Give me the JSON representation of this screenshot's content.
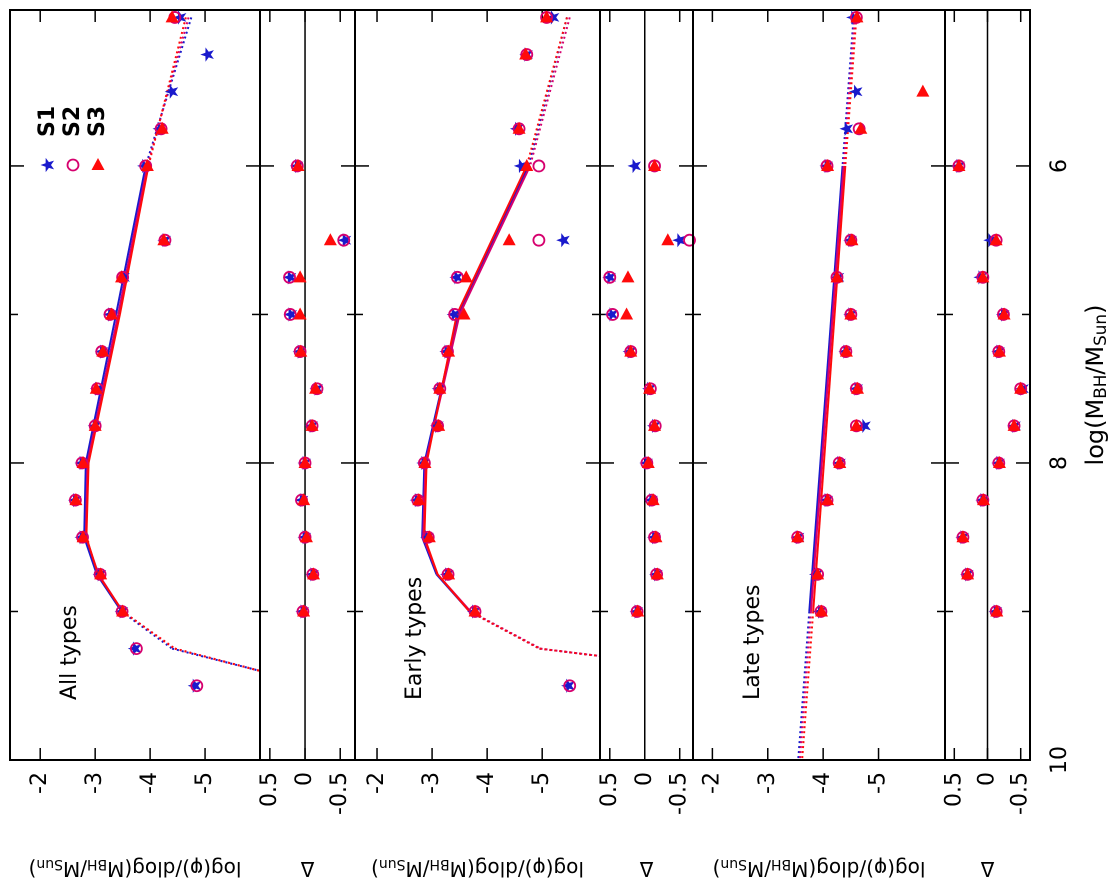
{
  "chart_data": [
    {
      "type": "scatter",
      "panel_label": "All types",
      "ylabel": [
        "log(φ)/dlog(M",
        "BH",
        "/M",
        "Sun",
        ")"
      ],
      "legend": "upper right",
      "xlim": [
        10,
        4.95
      ],
      "xticks": [
        10,
        8,
        6
      ],
      "xminorticks": [
        9,
        7
      ],
      "ylim": [
        -6.0,
        -1.45
      ],
      "yticks": [
        -2,
        -3,
        -4,
        -5
      ],
      "x": [
        5.0,
        5.25,
        5.5,
        5.75,
        6.0,
        6.5,
        6.75,
        7.0,
        7.25,
        7.5,
        7.75,
        8.0,
        8.25,
        8.5,
        8.75,
        9.0,
        9.25,
        9.5
      ],
      "model_x": [
        5.0,
        6.0,
        7.0,
        8.0,
        8.5,
        8.75,
        9.0,
        9.25,
        9.4
      ],
      "solid_range": [
        9.0,
        6.0
      ],
      "series": [
        {
          "name": "S1",
          "color": "#1a1acc",
          "marker": "star",
          "values": [
            -4.55,
            -5.05,
            -4.4,
            -4.18,
            -3.9,
            -4.27,
            -3.52,
            -3.28,
            -3.13,
            -3.04,
            -3.0,
            -2.76,
            -2.64,
            -2.76,
            -3.09,
            -3.49,
            -3.73,
            -4.82
          ],
          "model": [
            -4.75,
            -3.92,
            -3.38,
            -2.83,
            -2.8,
            -3.03,
            -3.48,
            -4.4,
            -6.0
          ]
        },
        {
          "name": "S2",
          "color": "#d6006e",
          "marker": "circle-open",
          "values": [
            -4.45,
            null,
            null,
            -4.2,
            -3.92,
            -4.27,
            -3.5,
            -3.27,
            -3.12,
            -3.04,
            -3.0,
            -2.76,
            -2.64,
            -2.77,
            -3.09,
            -3.49,
            -3.75,
            -4.85
          ],
          "model": [
            -4.7,
            -3.95,
            -3.42,
            -2.86,
            -2.83,
            -3.06,
            -3.5,
            -4.45,
            -6.0
          ]
        },
        {
          "name": "S3",
          "color": "#ff0a0a",
          "marker": "triangle",
          "values": [
            -4.4,
            null,
            null,
            -4.22,
            -3.95,
            -4.25,
            -3.48,
            -3.3,
            -3.14,
            -3.02,
            -3.0,
            -2.78,
            -2.65,
            -2.78,
            -3.1,
            -3.5,
            null,
            null
          ],
          "model": [
            -4.65,
            -3.97,
            -3.45,
            -2.88,
            -2.84,
            -3.05,
            -3.5,
            -4.45,
            -6.0
          ]
        }
      ]
    },
    {
      "type": "scatter",
      "ylabel": [
        "Δ"
      ],
      "zero_line": true,
      "xlim": [
        10,
        4.95
      ],
      "xticks": [
        10,
        8,
        6
      ],
      "xminorticks": [
        9,
        7
      ],
      "ylim": [
        -0.71,
        0.64
      ],
      "yticks": [
        0.5,
        0,
        -0.5
      ],
      "x": [
        6.0,
        6.5,
        6.75,
        7.0,
        7.25,
        7.5,
        7.75,
        8.0,
        8.25,
        8.5,
        8.75,
        9.0
      ],
      "series": [
        {
          "color": "#1a1acc",
          "marker": "star",
          "values": [
            0.11,
            -0.57,
            0.21,
            0.2,
            0.07,
            -0.17,
            -0.1,
            0.0,
            0.04,
            0.0,
            -0.11,
            0.03
          ]
        },
        {
          "color": "#d6006e",
          "marker": "circle-open",
          "values": [
            0.11,
            -0.55,
            0.22,
            0.21,
            0.07,
            -0.17,
            -0.1,
            0.0,
            0.05,
            0.0,
            -0.11,
            0.03
          ]
        },
        {
          "color": "#ff0a0a",
          "marker": "triangle",
          "values": [
            0.1,
            -0.36,
            0.07,
            0.07,
            0.06,
            -0.15,
            -0.1,
            0.0,
            0.02,
            -0.02,
            -0.12,
            0.02
          ]
        }
      ]
    },
    {
      "type": "scatter",
      "panel_label": "Early types",
      "ylabel": [
        "log(φ)/dlog(M",
        "BH",
        "/M",
        "Sun",
        ")"
      ],
      "xlim": [
        10,
        4.95
      ],
      "xticks": [
        10,
        8,
        6
      ],
      "xminorticks": [
        9,
        7
      ],
      "ylim": [
        -6.05,
        -1.6
      ],
      "yticks": [
        -2,
        -3,
        -4,
        -5
      ],
      "x": [
        5.0,
        5.25,
        5.5,
        5.75,
        6.0,
        6.5,
        6.75,
        7.0,
        7.25,
        7.5,
        7.75,
        8.0,
        8.25,
        8.5,
        8.75,
        9.0,
        9.25,
        9.5
      ],
      "model_x": [
        5.0,
        6.0,
        7.0,
        8.0,
        8.5,
        8.75,
        9.0,
        9.25,
        9.3
      ],
      "solid_range": [
        9.0,
        6.0
      ],
      "series": [
        {
          "color": "#1a1acc",
          "marker": "star",
          "values": [
            -5.2,
            -4.72,
            null,
            -4.55,
            -4.62,
            -5.39,
            -3.45,
            -3.4,
            -3.27,
            -3.13,
            -3.1,
            -2.85,
            -2.73,
            -2.92,
            -3.28,
            -3.77,
            null,
            -5.48
          ],
          "model": [
            -5.45,
            -4.75,
            -3.48,
            -2.86,
            -2.82,
            -3.08,
            -3.68,
            -4.95,
            -6.05
          ]
        },
        {
          "color": "#d6006e",
          "marker": "circle-open",
          "values": [
            -5.08,
            -4.72,
            null,
            -4.58,
            -4.94,
            -4.94,
            -3.46,
            -3.41,
            -3.28,
            -3.14,
            -3.1,
            -2.86,
            -2.74,
            -2.93,
            -3.29,
            -3.78,
            null,
            -5.5
          ],
          "model": [
            -5.5,
            -4.78,
            -3.5,
            -2.88,
            -2.84,
            -3.1,
            -3.7,
            -4.97,
            -6.05
          ]
        },
        {
          "color": "#ff0a0a",
          "marker": "triangle",
          "values": [
            -5.08,
            -4.7,
            null,
            -4.58,
            -4.72,
            -4.4,
            -3.62,
            -3.58,
            -3.3,
            -3.14,
            -3.12,
            -2.87,
            -2.76,
            -2.95,
            -3.3,
            -3.78,
            null,
            null
          ],
          "model": [
            -5.45,
            -4.72,
            -3.45,
            -2.9,
            -2.86,
            -3.1,
            -3.68,
            -4.95,
            -6.05
          ]
        }
      ]
    },
    {
      "type": "scatter",
      "ylabel": [
        "Δ"
      ],
      "zero_line": true,
      "xlim": [
        10,
        4.95
      ],
      "xticks": [
        10,
        8,
        6
      ],
      "xminorticks": [
        9,
        7
      ],
      "ylim": [
        -0.69,
        0.64
      ],
      "yticks": [
        0.5,
        0,
        -0.5
      ],
      "x": [
        6.0,
        6.5,
        6.75,
        7.0,
        7.25,
        7.5,
        7.75,
        8.0,
        8.25,
        8.5,
        8.75,
        9.0
      ],
      "series": [
        {
          "color": "#1a1acc",
          "marker": "star",
          "values": [
            0.14,
            -0.5,
            0.5,
            0.47,
            0.21,
            -0.07,
            -0.14,
            -0.03,
            -0.1,
            -0.14,
            -0.17,
            0.11
          ]
        },
        {
          "color": "#d6006e",
          "marker": "circle-open",
          "values": [
            -0.14,
            -0.64,
            0.5,
            0.46,
            0.2,
            -0.08,
            -0.15,
            -0.03,
            -0.1,
            -0.14,
            -0.17,
            0.11
          ]
        },
        {
          "color": "#ff0a0a",
          "marker": "triangle",
          "values": [
            -0.14,
            -0.33,
            0.24,
            0.26,
            0.2,
            -0.07,
            -0.14,
            -0.05,
            -0.12,
            -0.16,
            -0.18,
            0.1
          ]
        }
      ]
    },
    {
      "type": "scatter",
      "panel_label": "Late types",
      "ylabel": [
        "log(φ)/dlog(M",
        "BH",
        "/M",
        "Sun",
        ")"
      ],
      "xlim": [
        10,
        4.95
      ],
      "xticks": [
        10,
        8,
        6
      ],
      "xminorticks": [
        9,
        7
      ],
      "ylim": [
        -6.2,
        -1.65
      ],
      "yticks": [
        -2,
        -3,
        -4,
        -5
      ],
      "x": [
        5.0,
        5.25,
        5.5,
        5.75,
        6.0,
        6.5,
        6.75,
        7.0,
        7.25,
        7.5,
        7.75,
        8.0,
        8.25,
        8.5,
        8.75,
        9.0,
        9.25,
        9.5
      ],
      "model_x": [
        5.0,
        6.0,
        9.0,
        10.0
      ],
      "solid_range": [
        9.0,
        6.0
      ],
      "series": [
        {
          "color": "#1a1acc",
          "marker": "star",
          "values": [
            -4.55,
            null,
            -4.6,
            -4.43,
            -4.07,
            -4.5,
            -4.27,
            -4.5,
            -4.41,
            -4.61,
            -4.75,
            -4.3,
            -4.07,
            -3.55,
            -3.88,
            -3.95,
            null,
            null
          ],
          "model": [
            -4.55,
            -4.35,
            -3.75,
            -3.55
          ]
        },
        {
          "color": "#d6006e",
          "marker": "circle-open",
          "values": [
            -4.6,
            null,
            null,
            -4.65,
            -4.07,
            -4.5,
            -4.25,
            -4.5,
            -4.41,
            -4.6,
            -4.6,
            -4.29,
            -4.07,
            -3.54,
            -3.9,
            -3.96,
            null,
            null
          ],
          "model": [
            -4.57,
            -4.37,
            -3.78,
            -3.58
          ]
        },
        {
          "color": "#ff0a0a",
          "marker": "triangle",
          "values": [
            -4.61,
            null,
            -5.8,
            -4.68,
            -4.08,
            -4.52,
            -4.25,
            -4.5,
            -4.42,
            -4.62,
            -4.6,
            -4.3,
            -4.08,
            -3.54,
            -3.9,
            -3.97,
            null,
            null
          ],
          "model": [
            -4.6,
            -4.4,
            -3.82,
            -3.62
          ]
        }
      ]
    },
    {
      "type": "scatter",
      "ylabel": [
        "Δ"
      ],
      "zero_line": true,
      "xticklabels": true,
      "xlabel": [
        "log(M",
        "BH",
        "/M",
        "Sun",
        ")"
      ],
      "xlim": [
        10,
        4.95
      ],
      "xticks": [
        10,
        8,
        6
      ],
      "xminorticks": [
        9,
        7
      ],
      "ylim": [
        -0.64,
        0.64
      ],
      "yticks": [
        0.5,
        0,
        -0.5
      ],
      "x": [
        6.0,
        6.5,
        6.75,
        7.0,
        7.25,
        7.5,
        7.75,
        8.0,
        8.25,
        8.5,
        8.75,
        9.0
      ],
      "series": [
        {
          "color": "#1a1acc",
          "marker": "star",
          "values": [
            0.43,
            -0.05,
            0.1,
            -0.24,
            -0.17,
            -0.53,
            -0.41,
            -0.17,
            0.07,
            0.37,
            0.3,
            -0.13
          ]
        },
        {
          "color": "#d6006e",
          "marker": "circle-open",
          "values": [
            0.43,
            -0.13,
            0.07,
            -0.24,
            -0.17,
            -0.5,
            -0.4,
            -0.17,
            0.07,
            0.37,
            0.3,
            -0.13
          ]
        },
        {
          "color": "#ff0a0a",
          "marker": "triangle",
          "values": [
            0.43,
            -0.13,
            0.07,
            -0.25,
            -0.18,
            -0.5,
            -0.4,
            -0.18,
            0.06,
            0.37,
            0.3,
            -0.14
          ]
        }
      ]
    }
  ]
}
